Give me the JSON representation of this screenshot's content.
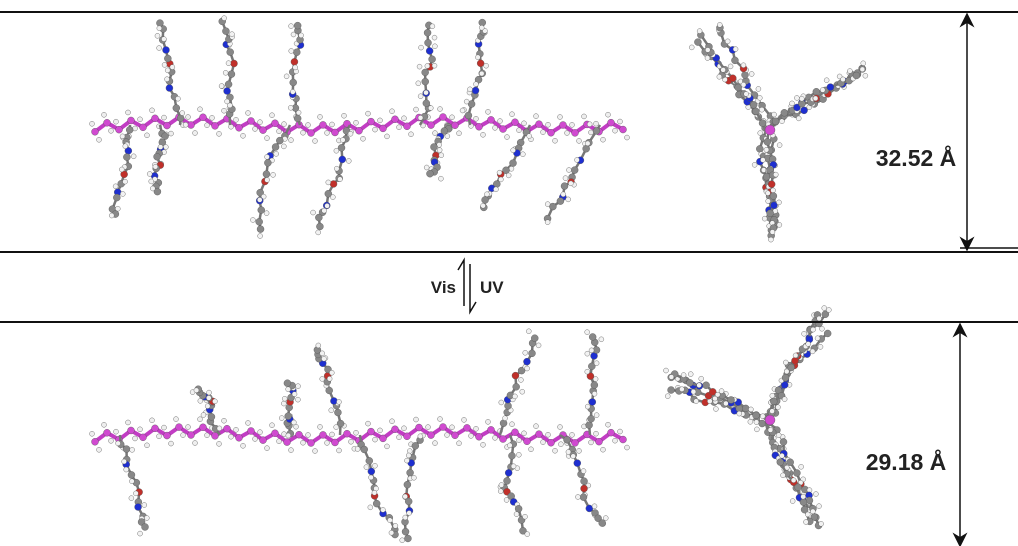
{
  "labels": {
    "top_distance": "32.52 Å",
    "bottom_distance": "29.18 Å",
    "forward": "Vis",
    "reverse": "UV"
  }
}
